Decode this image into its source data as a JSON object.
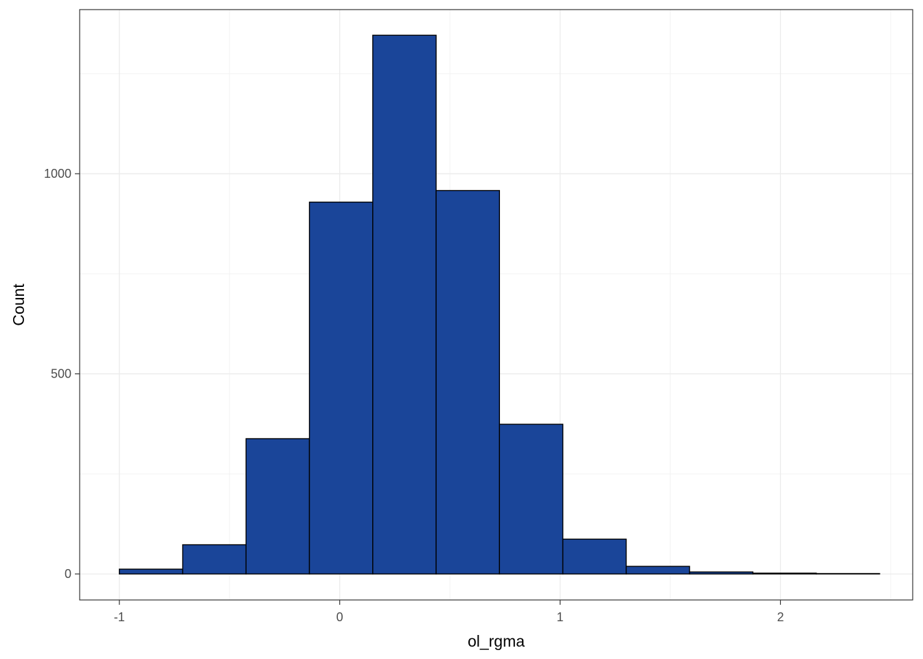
{
  "chart_data": {
    "type": "bar",
    "title": "",
    "xlabel": "ol_rgma",
    "ylabel": "Count",
    "xlim": [
      -1.18,
      2.6
    ],
    "ylim": [
      -65,
      1410
    ],
    "x_ticks": [
      -1,
      0,
      1,
      2
    ],
    "x_tick_labels": [
      "-1",
      "0",
      "1",
      "2"
    ],
    "y_ticks": [
      0,
      500,
      1000
    ],
    "y_tick_labels": [
      "0",
      "500",
      "1000"
    ],
    "grid": true,
    "bin_width": 0.2875,
    "bins": [
      {
        "x0": -1.0,
        "x1": -0.7125,
        "count": 12
      },
      {
        "x0": -0.7125,
        "x1": -0.425,
        "count": 73
      },
      {
        "x0": -0.425,
        "x1": -0.1375,
        "count": 338
      },
      {
        "x0": -0.1375,
        "x1": 0.15,
        "count": 929
      },
      {
        "x0": 0.15,
        "x1": 0.4375,
        "count": 1346
      },
      {
        "x0": 0.4375,
        "x1": 0.725,
        "count": 958
      },
      {
        "x0": 0.725,
        "x1": 1.0125,
        "count": 374
      },
      {
        "x0": 1.0125,
        "x1": 1.3,
        "count": 87
      },
      {
        "x0": 1.3,
        "x1": 1.5875,
        "count": 19
      },
      {
        "x0": 1.5875,
        "x1": 1.875,
        "count": 5
      },
      {
        "x0": 1.875,
        "x1": 2.1625,
        "count": 2
      },
      {
        "x0": 2.1625,
        "x1": 2.45,
        "count": 1
      }
    ],
    "colors": {
      "fill": "#1a4599",
      "outline": "#000000",
      "grid_major": "#ebebeb",
      "grid_minor": "#f2f2f2",
      "panel_border": "#333333"
    }
  }
}
